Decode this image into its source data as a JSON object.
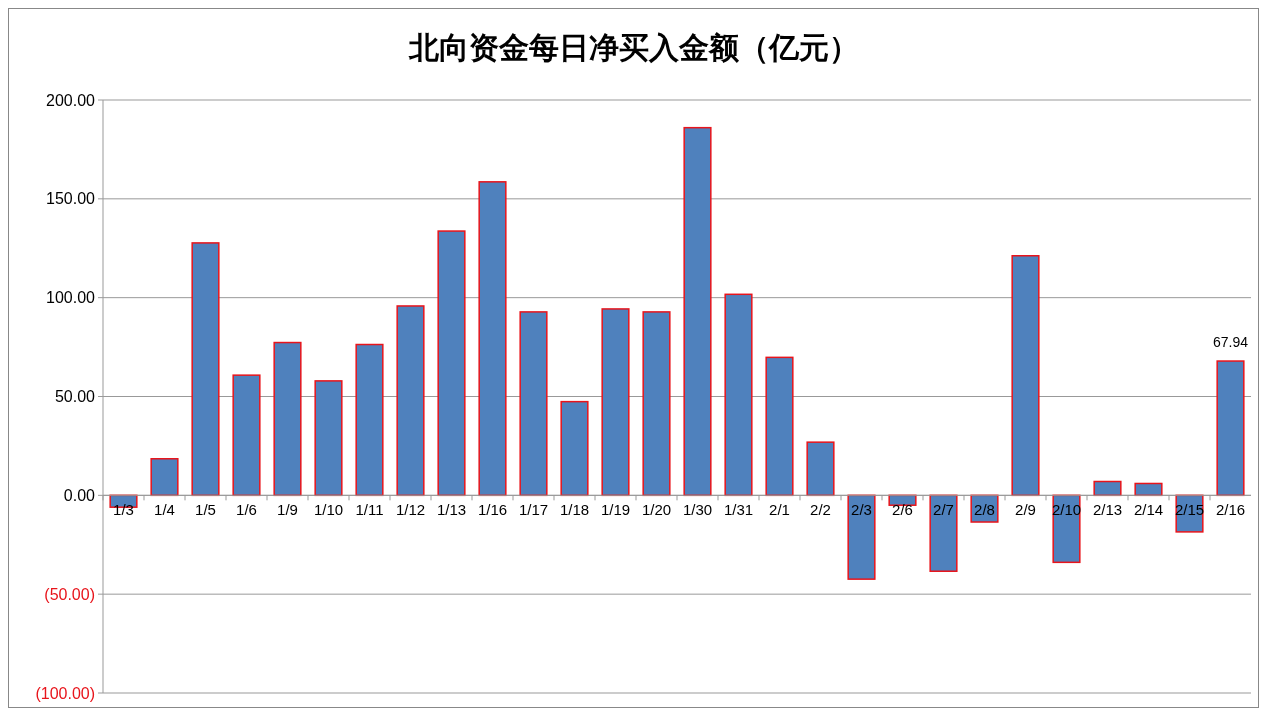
{
  "chart_data": {
    "type": "bar",
    "title": "北向资金每日净买入金额（亿元）",
    "categories": [
      "1/3",
      "1/4",
      "1/5",
      "1/6",
      "1/9",
      "1/10",
      "1/11",
      "1/12",
      "1/13",
      "1/16",
      "1/17",
      "1/18",
      "1/19",
      "1/20",
      "1/30",
      "1/31",
      "2/1",
      "2/2",
      "2/3",
      "2/6",
      "2/7",
      "2/8",
      "2/9",
      "2/10",
      "2/13",
      "2/14",
      "2/15",
      "2/16"
    ],
    "values": [
      -6,
      18.5,
      127.7,
      60.8,
      77.3,
      57.9,
      76.3,
      95.8,
      133.7,
      158.6,
      92.8,
      47.4,
      94.3,
      92.8,
      186,
      101.7,
      69.8,
      26.9,
      -42.4,
      -5,
      -38.4,
      -13.5,
      121.2,
      -33.9,
      7,
      6,
      -18.5,
      67.94
    ],
    "value_labels": [
      null,
      null,
      null,
      null,
      null,
      null,
      null,
      null,
      null,
      null,
      null,
      null,
      null,
      null,
      null,
      null,
      null,
      null,
      null,
      null,
      null,
      null,
      null,
      null,
      null,
      null,
      null,
      "67.94"
    ],
    "color": "#4f81bd",
    "ylim": [
      -100,
      200
    ],
    "yticks": [
      {
        "value": -100,
        "label": "(100.00)"
      },
      {
        "value": -50,
        "label": "(50.00)"
      },
      {
        "value": 0,
        "label": "0.00"
      },
      {
        "value": 50,
        "label": "50.00"
      },
      {
        "value": 100,
        "label": "100.00"
      },
      {
        "value": 150,
        "label": "150.00"
      },
      {
        "value": 200,
        "label": "200.00"
      }
    ],
    "grid": "y"
  }
}
